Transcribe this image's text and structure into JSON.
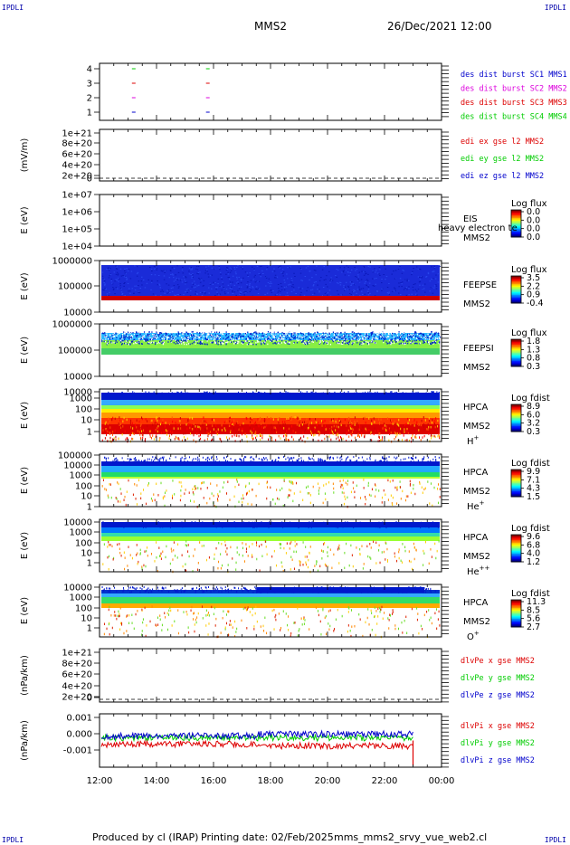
{
  "header": {
    "corner_left": "IPDLI",
    "corner_right": "IPDLI",
    "title": "MMS2",
    "date": "26/Dec/2021 12:00"
  },
  "footer": {
    "produced_by": "Produced by cl (IRAP)",
    "printing_date": "Printing date: 02/Feb/2025",
    "filename": "mms_mms2_srvy_vue_web2.cl",
    "corner_left": "IPDLI",
    "corner_right": "IPDLI"
  },
  "x_axis": {
    "ticks": [
      "12:00",
      "14:00",
      "16:00",
      "18:00",
      "20:00",
      "22:00",
      "00:00"
    ],
    "range_hours": [
      12,
      24
    ]
  },
  "colors": {
    "blue": "#0000cc",
    "magenta": "#dd00dd",
    "red": "#dd0000",
    "green": "#00cc00"
  },
  "panels": [
    {
      "type": "flags",
      "ylabel": "",
      "yticks": [
        "4",
        "3",
        "2",
        "1"
      ],
      "legend": [
        {
          "text": "des dist burst SC1 MMS1",
          "color": "#0000cc"
        },
        {
          "text": "des dist burst SC2 MMS2",
          "color": "#dd00dd"
        },
        {
          "text": "des dist burst SC3 MMS3",
          "color": "#dd0000"
        },
        {
          "text": "des dist burst SC4 MMS4",
          "color": "#00cc00"
        }
      ],
      "marks_hours": [
        13.2,
        15.8
      ]
    },
    {
      "type": "line-empty",
      "ylabel": "(mV/m)",
      "yticks": [
        "1e+21",
        "8e+20",
        "6e+20",
        "4e+20",
        "2e+20",
        "0"
      ],
      "legend": [
        {
          "text": "edi ex gse l2 MMS2",
          "color": "#dd0000"
        },
        {
          "text": "edi ey gse l2 MMS2",
          "color": "#00cc00"
        },
        {
          "text": "edi ez gse l2 MMS2",
          "color": "#0000cc"
        }
      ]
    },
    {
      "type": "spectro-empty",
      "ylabel": "E (eV)",
      "yticks": [
        "1e+07",
        "1e+06",
        "1e+05",
        "1e+04"
      ],
      "instrument": "EIS",
      "overlay": "heavy electron te",
      "sc": "MMS2",
      "species": "",
      "cb_title": "Log flux",
      "cb_ticks": [
        "0.0",
        "0.0",
        "0.0",
        "0.0"
      ]
    },
    {
      "type": "feepse",
      "ylabel": "E (eV)",
      "yticks": [
        "1000000",
        "100000",
        "10000"
      ],
      "instrument": "FEEPSE",
      "sc": "MMS2",
      "species": "",
      "cb_title": "Log flux",
      "cb_ticks": [
        "3.5",
        "2.2",
        "0.9",
        "-0.4"
      ]
    },
    {
      "type": "feepsi",
      "ylabel": "E (eV)",
      "yticks": [
        "1000000",
        "100000",
        "10000"
      ],
      "instrument": "FEEPSI",
      "sc": "MMS2",
      "species": "",
      "cb_title": "Log flux",
      "cb_ticks": [
        "1.8",
        "1.3",
        "0.8",
        "0.3"
      ]
    },
    {
      "type": "hpca-h",
      "ylabel": "E (eV)",
      "yticks": [
        "10000",
        "1000",
        "100",
        "10",
        "1"
      ],
      "instrument": "HPCA",
      "sc": "MMS2",
      "species": "H",
      "species_sup": "+",
      "cb_title": "Log fdist",
      "cb_ticks": [
        "8.9",
        "6.0",
        "3.2",
        "0.3"
      ]
    },
    {
      "type": "hpca-he",
      "ylabel": "E (eV)",
      "yticks": [
        "100000",
        "10000",
        "1000",
        "100",
        "10",
        "1"
      ],
      "instrument": "HPCA",
      "sc": "MMS2",
      "species": "He",
      "species_sup": "+",
      "cb_title": "Log fdist",
      "cb_ticks": [
        "9.9",
        "7.1",
        "4.3",
        "1.5"
      ]
    },
    {
      "type": "hpca-hepp",
      "ylabel": "E (eV)",
      "yticks": [
        "10000",
        "1000",
        "100",
        "10",
        "1"
      ],
      "instrument": "HPCA",
      "sc": "MMS2",
      "species": "He",
      "species_sup": "++",
      "cb_title": "Log fdist",
      "cb_ticks": [
        "9.6",
        "6.8",
        "4.0",
        "1.2"
      ]
    },
    {
      "type": "hpca-o",
      "ylabel": "E (eV)",
      "yticks": [
        "10000",
        "1000",
        "100",
        "10",
        "1"
      ],
      "instrument": "HPCA",
      "sc": "MMS2",
      "species": "O",
      "species_sup": "+",
      "cb_title": "Log fdist",
      "cb_ticks": [
        "11.3",
        "8.5",
        "5.6",
        "2.7"
      ]
    },
    {
      "type": "line-empty",
      "ylabel": "(nPa/km)",
      "yticks": [
        "1e+21",
        "8e+20",
        "6e+20",
        "4e+20",
        "2e+20",
        "0"
      ],
      "legend": [
        {
          "text": "dlvPe x gse MMS2",
          "color": "#dd0000"
        },
        {
          "text": "dlvPe y gse MMS2",
          "color": "#00cc00"
        },
        {
          "text": "dlvPe z gse MMS2",
          "color": "#0000cc"
        }
      ]
    },
    {
      "type": "line-noise",
      "ylabel": "(nPa/km)",
      "yticks": [
        "0.001",
        "0.000",
        "-0.001"
      ],
      "legend": [
        {
          "text": "dlvPi x gse MMS2",
          "color": "#dd0000"
        },
        {
          "text": "dlvPi y gse MMS2",
          "color": "#00cc00"
        },
        {
          "text": "dlvPi z gse MMS2",
          "color": "#0000cc"
        }
      ]
    }
  ],
  "chart_data": {
    "type": "heatmap",
    "title": "MMS2",
    "subtitle": "26/Dec/2021 12:00",
    "xlabel": "",
    "x_range_hours": [
      12,
      24
    ],
    "x_ticks": [
      "12:00",
      "14:00",
      "16:00",
      "18:00",
      "20:00",
      "22:00",
      "00:00"
    ],
    "panels": [
      {
        "name": "des dist burst",
        "type": "flags",
        "ylim": [
          0.5,
          4.5
        ],
        "burst_times": [
          "13:12",
          "15:48"
        ]
      },
      {
        "name": "edi e gse l2 MMS2",
        "type": "line",
        "ylabel": "(mV/m)",
        "ylim": [
          0,
          1e+21
        ],
        "series": []
      },
      {
        "name": "EIS",
        "type": "heatmap",
        "ylabel": "E (eV)",
        "ylim_log": [
          10000.0,
          10000000.0
        ],
        "z_label": "Log flux",
        "z_range": [
          0.0,
          0.0
        ]
      },
      {
        "name": "FEEPSE",
        "type": "heatmap",
        "ylabel": "E (eV)",
        "ylim_log": [
          10000.0,
          1000000.0
        ],
        "z_label": "Log flux",
        "z_range": [
          -0.4,
          3.5
        ]
      },
      {
        "name": "FEEPSI",
        "type": "heatmap",
        "ylabel": "E (eV)",
        "ylim_log": [
          10000.0,
          1000000.0
        ],
        "z_label": "Log flux",
        "z_range": [
          0.3,
          1.8
        ]
      },
      {
        "name": "HPCA H+",
        "type": "heatmap",
        "ylabel": "E (eV)",
        "ylim_log": [
          1,
          40000.0
        ],
        "z_label": "Log fdist",
        "z_range": [
          0.3,
          8.9
        ]
      },
      {
        "name": "HPCA He+",
        "type": "heatmap",
        "ylabel": "E (eV)",
        "ylim_log": [
          1,
          100000.0
        ],
        "z_label": "Log fdist",
        "z_range": [
          1.5,
          9.9
        ]
      },
      {
        "name": "HPCA He++",
        "type": "heatmap",
        "ylabel": "E (eV)",
        "ylim_log": [
          1,
          40000.0
        ],
        "z_label": "Log fdist",
        "z_range": [
          1.2,
          9.6
        ]
      },
      {
        "name": "HPCA O+",
        "type": "heatmap",
        "ylabel": "E (eV)",
        "ylim_log": [
          1,
          40000.0
        ],
        "z_label": "Log fdist",
        "z_range": [
          2.7,
          11.3
        ]
      },
      {
        "name": "dlvPe gse MMS2",
        "type": "line",
        "ylabel": "(nPa/km)",
        "ylim": [
          0,
          1e+21
        ],
        "series": []
      },
      {
        "name": "dlvPi gse MMS2",
        "type": "line",
        "ylabel": "(nPa/km)",
        "ylim": [
          -0.0015,
          0.0015
        ],
        "series": [
          {
            "name": "dlvPi x gse MMS2",
            "approx_mean": -0.0001
          },
          {
            "name": "dlvPi y gse MMS2",
            "approx_mean": 0.0
          },
          {
            "name": "dlvPi z gse MMS2",
            "approx_mean": 0.0001
          }
        ],
        "data_end": "23:00"
      }
    ]
  }
}
